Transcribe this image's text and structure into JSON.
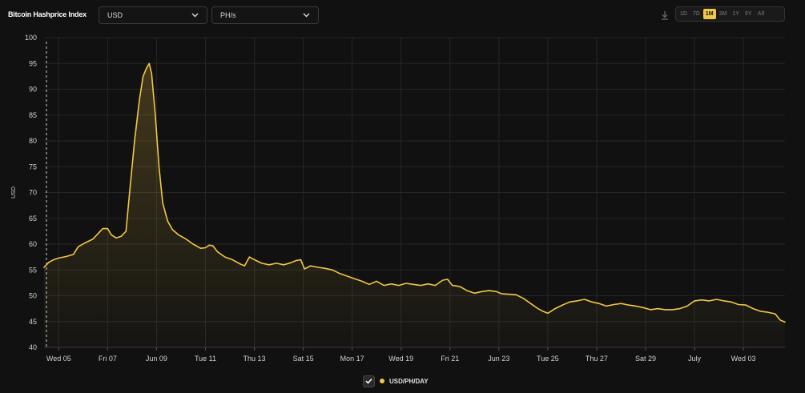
{
  "header": {
    "title": "Bitcoin Hashprice Index",
    "currency_value": "USD",
    "unit_value": "PH/s"
  },
  "toolbar": {
    "download_icon": "download-icon",
    "ranges": [
      "1D",
      "7D",
      "1M",
      "3M",
      "1Y",
      "5Y",
      "All"
    ],
    "active_range": "1M"
  },
  "colors": {
    "background": "#111111",
    "line": "#f2c744",
    "grid": "#262626",
    "active": "#f2c744"
  },
  "legend": {
    "checked": true,
    "label": "USD/PH/DAY"
  },
  "chart_data": {
    "type": "area",
    "ylabel": "USD",
    "ylim": [
      40,
      100
    ],
    "yticks": [
      40,
      45,
      50,
      55,
      60,
      65,
      70,
      75,
      80,
      85,
      90,
      95,
      100
    ],
    "xlim": [
      -0.3,
      30.0
    ],
    "xticks": [
      {
        "x": 0.3,
        "label": "Wed 05"
      },
      {
        "x": 2.3,
        "label": "Fri 07"
      },
      {
        "x": 4.3,
        "label": "Jun 09"
      },
      {
        "x": 6.3,
        "label": "Tue 11"
      },
      {
        "x": 8.3,
        "label": "Thu 13"
      },
      {
        "x": 10.3,
        "label": "Sat 15"
      },
      {
        "x": 12.3,
        "label": "Mon 17"
      },
      {
        "x": 14.3,
        "label": "Wed 19"
      },
      {
        "x": 16.3,
        "label": "Fri 21"
      },
      {
        "x": 18.3,
        "label": "Jun 23"
      },
      {
        "x": 20.3,
        "label": "Tue 25"
      },
      {
        "x": 22.3,
        "label": "Thu 27"
      },
      {
        "x": 24.3,
        "label": "Sat 29"
      },
      {
        "x": 26.3,
        "label": "July"
      },
      {
        "x": 28.3,
        "label": "Wed 03"
      }
    ],
    "grid": true,
    "legend_position": "bottom-center",
    "series": [
      {
        "name": "USD/PH/DAY",
        "points": [
          [
            -0.3,
            55.5
          ],
          [
            -0.1,
            56.5
          ],
          [
            0.1,
            57.0
          ],
          [
            0.3,
            57.3
          ],
          [
            0.6,
            57.6
          ],
          [
            0.9,
            58.0
          ],
          [
            1.1,
            59.5
          ],
          [
            1.4,
            60.3
          ],
          [
            1.7,
            61.0
          ],
          [
            1.9,
            62.0
          ],
          [
            2.1,
            63.0
          ],
          [
            2.3,
            63.0
          ],
          [
            2.45,
            61.8
          ],
          [
            2.65,
            61.2
          ],
          [
            2.85,
            61.5
          ],
          [
            3.05,
            62.5
          ],
          [
            3.2,
            70.0
          ],
          [
            3.4,
            80.0
          ],
          [
            3.6,
            88.0
          ],
          [
            3.75,
            92.5
          ],
          [
            3.9,
            94.2
          ],
          [
            4.0,
            95.0
          ],
          [
            4.1,
            93.0
          ],
          [
            4.25,
            85.0
          ],
          [
            4.4,
            75.0
          ],
          [
            4.55,
            68.0
          ],
          [
            4.75,
            64.5
          ],
          [
            4.95,
            62.8
          ],
          [
            5.2,
            61.8
          ],
          [
            5.5,
            61.0
          ],
          [
            5.8,
            60.0
          ],
          [
            6.1,
            59.2
          ],
          [
            6.3,
            59.3
          ],
          [
            6.45,
            59.8
          ],
          [
            6.6,
            59.7
          ],
          [
            6.8,
            58.5
          ],
          [
            7.1,
            57.5
          ],
          [
            7.4,
            57.0
          ],
          [
            7.7,
            56.2
          ],
          [
            7.9,
            55.8
          ],
          [
            8.1,
            57.5
          ],
          [
            8.3,
            57.0
          ],
          [
            8.6,
            56.3
          ],
          [
            8.9,
            56.0
          ],
          [
            9.2,
            56.3
          ],
          [
            9.5,
            56.0
          ],
          [
            9.8,
            56.4
          ],
          [
            10.0,
            56.8
          ],
          [
            10.2,
            57.0
          ],
          [
            10.35,
            55.2
          ],
          [
            10.6,
            55.8
          ],
          [
            10.9,
            55.5
          ],
          [
            11.2,
            55.3
          ],
          [
            11.5,
            55.0
          ],
          [
            11.8,
            54.3
          ],
          [
            12.1,
            53.8
          ],
          [
            12.4,
            53.3
          ],
          [
            12.7,
            52.8
          ],
          [
            13.0,
            52.2
          ],
          [
            13.3,
            52.8
          ],
          [
            13.6,
            52.0
          ],
          [
            13.9,
            52.3
          ],
          [
            14.2,
            52.0
          ],
          [
            14.5,
            52.4
          ],
          [
            14.8,
            52.2
          ],
          [
            15.1,
            52.0
          ],
          [
            15.4,
            52.3
          ],
          [
            15.7,
            52.0
          ],
          [
            16.0,
            53.0
          ],
          [
            16.2,
            53.2
          ],
          [
            16.4,
            52.0
          ],
          [
            16.7,
            51.8
          ],
          [
            17.0,
            51.0
          ],
          [
            17.3,
            50.5
          ],
          [
            17.6,
            50.8
          ],
          [
            17.9,
            51.0
          ],
          [
            18.2,
            50.8
          ],
          [
            18.4,
            50.4
          ],
          [
            18.7,
            50.3
          ],
          [
            19.0,
            50.2
          ],
          [
            19.3,
            49.5
          ],
          [
            19.6,
            48.5
          ],
          [
            19.9,
            47.5
          ],
          [
            20.1,
            47.0
          ],
          [
            20.3,
            46.6
          ],
          [
            20.6,
            47.5
          ],
          [
            20.9,
            48.2
          ],
          [
            21.2,
            48.8
          ],
          [
            21.5,
            49.0
          ],
          [
            21.8,
            49.3
          ],
          [
            22.1,
            48.8
          ],
          [
            22.4,
            48.5
          ],
          [
            22.7,
            48.0
          ],
          [
            23.0,
            48.3
          ],
          [
            23.3,
            48.5
          ],
          [
            23.6,
            48.2
          ],
          [
            23.9,
            48.0
          ],
          [
            24.2,
            47.7
          ],
          [
            24.5,
            47.3
          ],
          [
            24.8,
            47.5
          ],
          [
            25.1,
            47.3
          ],
          [
            25.4,
            47.3
          ],
          [
            25.7,
            47.5
          ],
          [
            26.0,
            48.0
          ],
          [
            26.3,
            49.0
          ],
          [
            26.6,
            49.2
          ],
          [
            26.9,
            49.0
          ],
          [
            27.2,
            49.3
          ],
          [
            27.5,
            49.0
          ],
          [
            27.8,
            48.8
          ],
          [
            28.1,
            48.3
          ],
          [
            28.4,
            48.2
          ],
          [
            28.7,
            47.5
          ],
          [
            29.0,
            47.0
          ],
          [
            29.3,
            46.8
          ],
          [
            29.6,
            46.5
          ],
          [
            29.8,
            45.3
          ],
          [
            30.0,
            44.9
          ]
        ]
      }
    ]
  }
}
